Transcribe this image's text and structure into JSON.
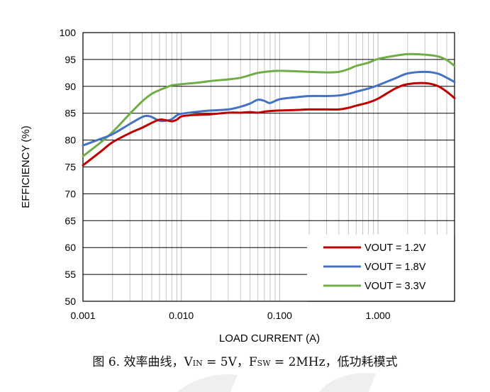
{
  "chart_data": {
    "type": "line",
    "xscale": "log",
    "xlabel": "LOAD CURRENT (A)",
    "ylabel": "EFFICIENCY (%)",
    "xlim": [
      0.001,
      6
    ],
    "ylim": [
      50,
      100
    ],
    "x_ticks": [
      0.001,
      0.01,
      0.1,
      1
    ],
    "x_tick_labels": [
      "0.001",
      "0.010",
      "0.100",
      "1.000"
    ],
    "y_ticks": [
      50,
      55,
      60,
      65,
      70,
      75,
      80,
      85,
      90,
      95,
      100
    ],
    "y_tick_labels": [
      "50",
      "55",
      "60",
      "65",
      "70",
      "75",
      "80",
      "85",
      "90",
      "95",
      "100"
    ],
    "grid": true,
    "legend_position": "bottom-right",
    "series": [
      {
        "name": "VOUT = 1.2V",
        "color": "#c00000",
        "x": [
          0.001,
          0.0015,
          0.002,
          0.003,
          0.004,
          0.005,
          0.006,
          0.007,
          0.008,
          0.009,
          0.01,
          0.012,
          0.015,
          0.02,
          0.03,
          0.04,
          0.05,
          0.06,
          0.07,
          0.08,
          0.1,
          0.15,
          0.2,
          0.3,
          0.4,
          0.5,
          0.6,
          0.8,
          1.0,
          1.5,
          2.0,
          3.0,
          4.0,
          5.0,
          6.0
        ],
        "y": [
          75.3,
          77.8,
          79.6,
          81.3,
          82.3,
          83.2,
          83.8,
          83.7,
          83.5,
          83.8,
          84.4,
          84.6,
          84.7,
          84.8,
          85.1,
          85.1,
          85.2,
          85.1,
          85.3,
          85.4,
          85.5,
          85.6,
          85.7,
          85.7,
          85.7,
          86.0,
          86.4,
          87.0,
          87.7,
          89.6,
          90.4,
          90.6,
          90.1,
          89.0,
          87.8
        ]
      },
      {
        "name": "VOUT = 1.8V",
        "color": "#4472c4",
        "x": [
          0.001,
          0.0015,
          0.002,
          0.003,
          0.004,
          0.0045,
          0.005,
          0.006,
          0.007,
          0.008,
          0.009,
          0.01,
          0.015,
          0.02,
          0.03,
          0.04,
          0.05,
          0.06,
          0.07,
          0.08,
          0.1,
          0.15,
          0.2,
          0.3,
          0.4,
          0.5,
          0.6,
          0.8,
          1.0,
          1.5,
          2.0,
          3.0,
          4.0,
          5.0,
          6.0
        ],
        "y": [
          79.0,
          80.2,
          81.1,
          83.0,
          84.3,
          84.5,
          84.3,
          83.6,
          83.6,
          83.9,
          84.6,
          84.9,
          85.3,
          85.5,
          85.7,
          86.2,
          86.8,
          87.5,
          87.3,
          86.9,
          87.6,
          88.0,
          88.2,
          88.2,
          88.3,
          88.6,
          89.0,
          89.6,
          90.2,
          91.5,
          92.4,
          92.7,
          92.4,
          91.6,
          90.8
        ]
      },
      {
        "name": "VOUT = 3.3V",
        "color": "#70ad47",
        "x": [
          0.001,
          0.0015,
          0.002,
          0.003,
          0.004,
          0.005,
          0.006,
          0.007,
          0.008,
          0.009,
          0.01,
          0.015,
          0.02,
          0.03,
          0.04,
          0.05,
          0.06,
          0.08,
          0.1,
          0.15,
          0.2,
          0.3,
          0.4,
          0.5,
          0.6,
          0.8,
          1.0,
          1.5,
          2.0,
          3.0,
          4.0,
          5.0,
          6.0
        ],
        "y": [
          77.0,
          79.5,
          81.5,
          84.9,
          87.2,
          88.6,
          89.3,
          89.8,
          90.2,
          90.3,
          90.4,
          90.7,
          91.0,
          91.3,
          91.6,
          92.1,
          92.5,
          92.8,
          92.9,
          92.8,
          92.7,
          92.6,
          92.7,
          93.2,
          93.8,
          94.4,
          95.1,
          95.7,
          96.0,
          95.9,
          95.6,
          94.9,
          93.8
        ]
      }
    ]
  },
  "caption": {
    "prefix": "图 6. 效率曲线，V",
    "vin_sub": "IN",
    "vin_value": " = 5V，F",
    "fsw_sub": "SW",
    "fsw_value": " = 2MHz，低功耗模式"
  },
  "watermark_color": "#eeeeee"
}
